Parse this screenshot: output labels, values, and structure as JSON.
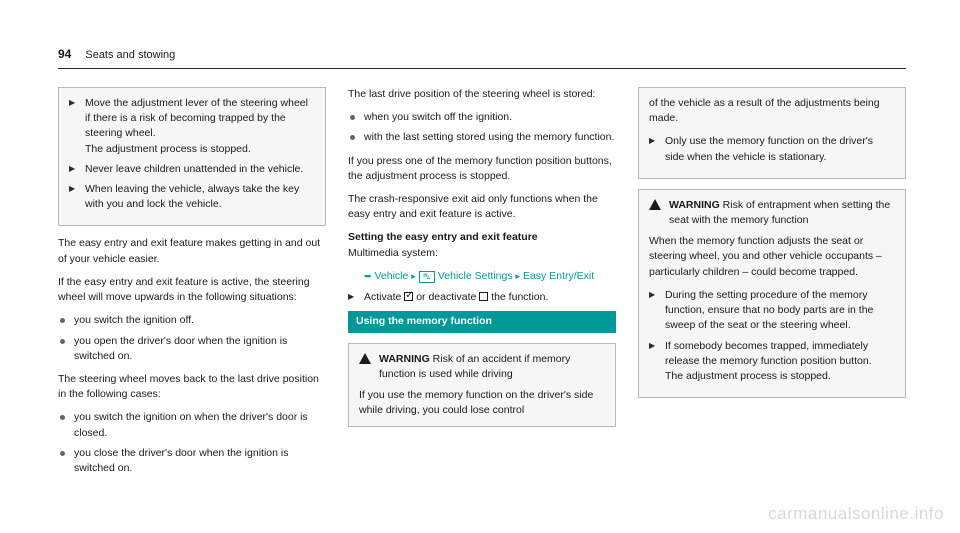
{
  "header": {
    "page_num": "94",
    "section": "Seats and stowing"
  },
  "col1": {
    "box1_items": [
      "Move the adjustment lever of the steering wheel if there is a risk of becoming trapped by the steering wheel.\nThe adjustment process is stopped.",
      "Never leave children unattended in the vehicle.",
      "When leaving the vehicle, always take the key with you and lock the vehicle."
    ],
    "p1": "The easy entry and exit feature makes getting in and out of your vehicle easier.",
    "p2": "If the easy entry and exit feature is active, the steering wheel will move upwards in the following situations:",
    "list1": [
      "you switch the ignition off.",
      "you open the driver's door when the ignition is switched on."
    ],
    "p3": "The steering wheel moves back to the last drive position in the following cases:",
    "list2": [
      "you switch the ignition on when the driver's door is closed.",
      "you close the driver's door when the ignition is switched on."
    ]
  },
  "col2": {
    "p1": "The last drive position of the steering wheel is stored:",
    "list1": [
      "when you switch off the ignition.",
      "with the last setting stored using the memory function."
    ],
    "p2": "If you press one of the memory function position buttons, the adjustment process is stopped.",
    "p3": "The crash-responsive exit aid only functions when the easy entry and exit feature is active.",
    "h1": "Setting the easy entry and exit feature",
    "h1_sub": "Multimedia system:",
    "nav": {
      "a": "Vehicle",
      "b": "Vehicle Settings",
      "c": "Easy Entry/Exit"
    },
    "activate_pre": "Activate",
    "activate_mid": "or deactivate",
    "activate_post": "the function.",
    "section_bar": "Using the memory function",
    "warn_label": "WARNING",
    "warn_title": "Risk of an accident if memory function is used while driving",
    "warn_body": "If you use the memory function on the driver's side while driving, you could lose control"
  },
  "col3": {
    "box1_cont": "of the vehicle as a result of the adjustments being made.",
    "box1_item": "Only use the memory function on the driver's side when the vehicle is stationary.",
    "warn2_label": "WARNING",
    "warn2_title": "Risk of entrapment when setting the seat with the memory function",
    "warn2_body": "When the memory function adjusts the seat or steering wheel, you and other vehicle occupants – particularly children – could become trapped.",
    "warn2_items": [
      "During the setting procedure of the memory function, ensure that no body parts are in the sweep of the seat or the steering wheel.",
      "If somebody becomes trapped, immediately release the memory function position button.\nThe adjustment process is stopped."
    ]
  },
  "watermark": "carmanualsonline.info"
}
